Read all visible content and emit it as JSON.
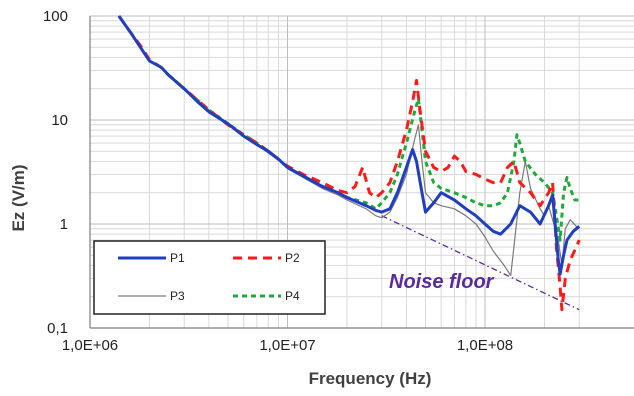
{
  "chart_data": {
    "type": "line",
    "title": "",
    "xlabel": "Frequency (Hz)",
    "ylabel": "Ez (V/m)",
    "x_scale": "log",
    "y_scale": "log",
    "xlim": [
      1000000,
      300000000
    ],
    "ylim": [
      0.1,
      100
    ],
    "x_tick_labels": [
      "1,0E+06",
      "1,0E+07",
      "1,0E+08"
    ],
    "x_tick_values": [
      1000000,
      10000000,
      100000000
    ],
    "y_tick_labels": [
      "0,1",
      "1",
      "10",
      "100"
    ],
    "y_tick_values": [
      0.1,
      1,
      10,
      100
    ],
    "grid": true,
    "legend_position": "bottom-left",
    "annotation": {
      "text": "Noise floor",
      "color": "#5a2c9b"
    },
    "series": [
      {
        "name": "P1",
        "color": "#1f3fbf",
        "dash": "solid",
        "width": 3,
        "points": [
          [
            1400000,
            100
          ],
          [
            1600000,
            70
          ],
          [
            1800000,
            50
          ],
          [
            2000000,
            37
          ],
          [
            2300000,
            32
          ],
          [
            2500000,
            27
          ],
          [
            3000000,
            20
          ],
          [
            3500000,
            15
          ],
          [
            4000000,
            12
          ],
          [
            5000000,
            9.2
          ],
          [
            6000000,
            7
          ],
          [
            7000000,
            5.8
          ],
          [
            8000000,
            5
          ],
          [
            9000000,
            4.2
          ],
          [
            10000000,
            3.5
          ],
          [
            12000000,
            2.9
          ],
          [
            15000000,
            2.3
          ],
          [
            18000000,
            2
          ],
          [
            20000000,
            1.8
          ],
          [
            25000000,
            1.5
          ],
          [
            28000000,
            1.35
          ],
          [
            30000000,
            1.3
          ],
          [
            33000000,
            1.4
          ],
          [
            36000000,
            2
          ],
          [
            40000000,
            3.5
          ],
          [
            43000000,
            5.2
          ],
          [
            45000000,
            4
          ],
          [
            48000000,
            2
          ],
          [
            50000000,
            1.3
          ],
          [
            55000000,
            1.6
          ],
          [
            60000000,
            2
          ],
          [
            70000000,
            1.7
          ],
          [
            80000000,
            1.4
          ],
          [
            90000000,
            1.2
          ],
          [
            100000000,
            1
          ],
          [
            110000000,
            0.85
          ],
          [
            120000000,
            0.8
          ],
          [
            135000000,
            1
          ],
          [
            150000000,
            1.5
          ],
          [
            170000000,
            1.3
          ],
          [
            190000000,
            1
          ],
          [
            210000000,
            1.5
          ],
          [
            220000000,
            1.9
          ],
          [
            235000000,
            0.45
          ],
          [
            240000000,
            0.33
          ],
          [
            250000000,
            0.5
          ],
          [
            260000000,
            0.7
          ],
          [
            280000000,
            0.85
          ],
          [
            300000000,
            0.95
          ]
        ]
      },
      {
        "name": "P2",
        "color": "#ff1a1a",
        "dash": "9 6",
        "width": 3,
        "points": [
          [
            1400000,
            100
          ],
          [
            1600000,
            70
          ],
          [
            1800000,
            52
          ],
          [
            2000000,
            38
          ],
          [
            2300000,
            32
          ],
          [
            2500000,
            27
          ],
          [
            3000000,
            20
          ],
          [
            3500000,
            15.5
          ],
          [
            4000000,
            12.5
          ],
          [
            5000000,
            9
          ],
          [
            6000000,
            7.2
          ],
          [
            7000000,
            6
          ],
          [
            8000000,
            5
          ],
          [
            9000000,
            4.2
          ],
          [
            10000000,
            3.6
          ],
          [
            12000000,
            3
          ],
          [
            15000000,
            2.5
          ],
          [
            18000000,
            2.1
          ],
          [
            20000000,
            2
          ],
          [
            22000000,
            2.3
          ],
          [
            24000000,
            3.5
          ],
          [
            26000000,
            2
          ],
          [
            28000000,
            1.8
          ],
          [
            30000000,
            2
          ],
          [
            33000000,
            2.5
          ],
          [
            36000000,
            4
          ],
          [
            40000000,
            8
          ],
          [
            43000000,
            15
          ],
          [
            45000000,
            24
          ],
          [
            47000000,
            12
          ],
          [
            50000000,
            5
          ],
          [
            55000000,
            3.5
          ],
          [
            60000000,
            3.2
          ],
          [
            65000000,
            3.5
          ],
          [
            70000000,
            4.5
          ],
          [
            75000000,
            4
          ],
          [
            80000000,
            3.2
          ],
          [
            90000000,
            3
          ],
          [
            100000000,
            2.7
          ],
          [
            110000000,
            2.5
          ],
          [
            120000000,
            2.5
          ],
          [
            130000000,
            3.5
          ],
          [
            140000000,
            4
          ],
          [
            150000000,
            2.5
          ],
          [
            170000000,
            2
          ],
          [
            190000000,
            1.5
          ],
          [
            210000000,
            2
          ],
          [
            220000000,
            2.5
          ],
          [
            230000000,
            0.6
          ],
          [
            240000000,
            0.25
          ],
          [
            245000000,
            0.15
          ],
          [
            255000000,
            0.3
          ],
          [
            270000000,
            0.45
          ],
          [
            290000000,
            0.6
          ],
          [
            300000000,
            0.7
          ]
        ]
      },
      {
        "name": "P3",
        "color": "#7a7a7a",
        "dash": "solid",
        "width": 1.2,
        "points": [
          [
            2500000,
            27
          ],
          [
            3000000,
            20
          ],
          [
            3500000,
            15.5
          ],
          [
            4000000,
            12.5
          ],
          [
            5000000,
            9
          ],
          [
            6000000,
            7
          ],
          [
            7000000,
            5.8
          ],
          [
            8000000,
            4.8
          ],
          [
            9000000,
            4.1
          ],
          [
            10000000,
            3.4
          ],
          [
            12000000,
            2.8
          ],
          [
            15000000,
            2.2
          ],
          [
            18000000,
            1.9
          ],
          [
            20000000,
            1.7
          ],
          [
            25000000,
            1.4
          ],
          [
            28000000,
            1.2
          ],
          [
            30000000,
            1.15
          ],
          [
            33000000,
            1.3
          ],
          [
            36000000,
            1.8
          ],
          [
            40000000,
            3
          ],
          [
            44000000,
            6.5
          ],
          [
            46000000,
            9
          ],
          [
            48000000,
            4
          ],
          [
            50000000,
            2
          ],
          [
            55000000,
            1.6
          ],
          [
            60000000,
            1.5
          ],
          [
            70000000,
            1.4
          ],
          [
            80000000,
            1.2
          ],
          [
            90000000,
            1
          ],
          [
            100000000,
            0.75
          ],
          [
            110000000,
            0.55
          ],
          [
            125000000,
            0.4
          ],
          [
            135000000,
            0.32
          ],
          [
            140000000,
            0.6
          ],
          [
            150000000,
            2
          ],
          [
            160000000,
            4
          ],
          [
            170000000,
            2.2
          ],
          [
            190000000,
            1.4
          ],
          [
            200000000,
            1.2
          ],
          [
            210000000,
            1.5
          ],
          [
            220000000,
            1.1
          ],
          [
            235000000,
            0.7
          ],
          [
            245000000,
            0.4
          ],
          [
            255000000,
            0.9
          ],
          [
            270000000,
            1.1
          ],
          [
            290000000,
            0.95
          ],
          [
            300000000,
            0.9
          ]
        ]
      },
      {
        "name": "P4",
        "color": "#1faa3b",
        "dash": "5 4",
        "width": 3,
        "points": [
          [
            2500000,
            27
          ],
          [
            3000000,
            20
          ],
          [
            3500000,
            15.5
          ],
          [
            4000000,
            12.5
          ],
          [
            5000000,
            9.2
          ],
          [
            6000000,
            7.2
          ],
          [
            7000000,
            6
          ],
          [
            8000000,
            5
          ],
          [
            9000000,
            4.2
          ],
          [
            10000000,
            3.5
          ],
          [
            12000000,
            2.9
          ],
          [
            15000000,
            2.3
          ],
          [
            18000000,
            2
          ],
          [
            20000000,
            1.8
          ],
          [
            25000000,
            1.6
          ],
          [
            28000000,
            1.4
          ],
          [
            30000000,
            1.6
          ],
          [
            33000000,
            2
          ],
          [
            36000000,
            3
          ],
          [
            40000000,
            6
          ],
          [
            44000000,
            12
          ],
          [
            46000000,
            16
          ],
          [
            48000000,
            8
          ],
          [
            50000000,
            4
          ],
          [
            55000000,
            2.5
          ],
          [
            60000000,
            2.2
          ],
          [
            70000000,
            2
          ],
          [
            80000000,
            1.8
          ],
          [
            90000000,
            1.6
          ],
          [
            100000000,
            1.5
          ],
          [
            110000000,
            1.5
          ],
          [
            120000000,
            1.6
          ],
          [
            130000000,
            2
          ],
          [
            140000000,
            4
          ],
          [
            145000000,
            7.2
          ],
          [
            150000000,
            6
          ],
          [
            160000000,
            4
          ],
          [
            180000000,
            3
          ],
          [
            200000000,
            2.5
          ],
          [
            220000000,
            2
          ],
          [
            230000000,
            1.2
          ],
          [
            240000000,
            0.7
          ],
          [
            250000000,
            2
          ],
          [
            260000000,
            2.8
          ],
          [
            270000000,
            2.2
          ],
          [
            285000000,
            1.7
          ],
          [
            300000000,
            1.7
          ]
        ]
      }
    ],
    "noise_floor": {
      "color": "#5a2c9b",
      "points": [
        [
          30000000,
          1.2
        ],
        [
          300000000,
          0.15
        ]
      ]
    }
  }
}
